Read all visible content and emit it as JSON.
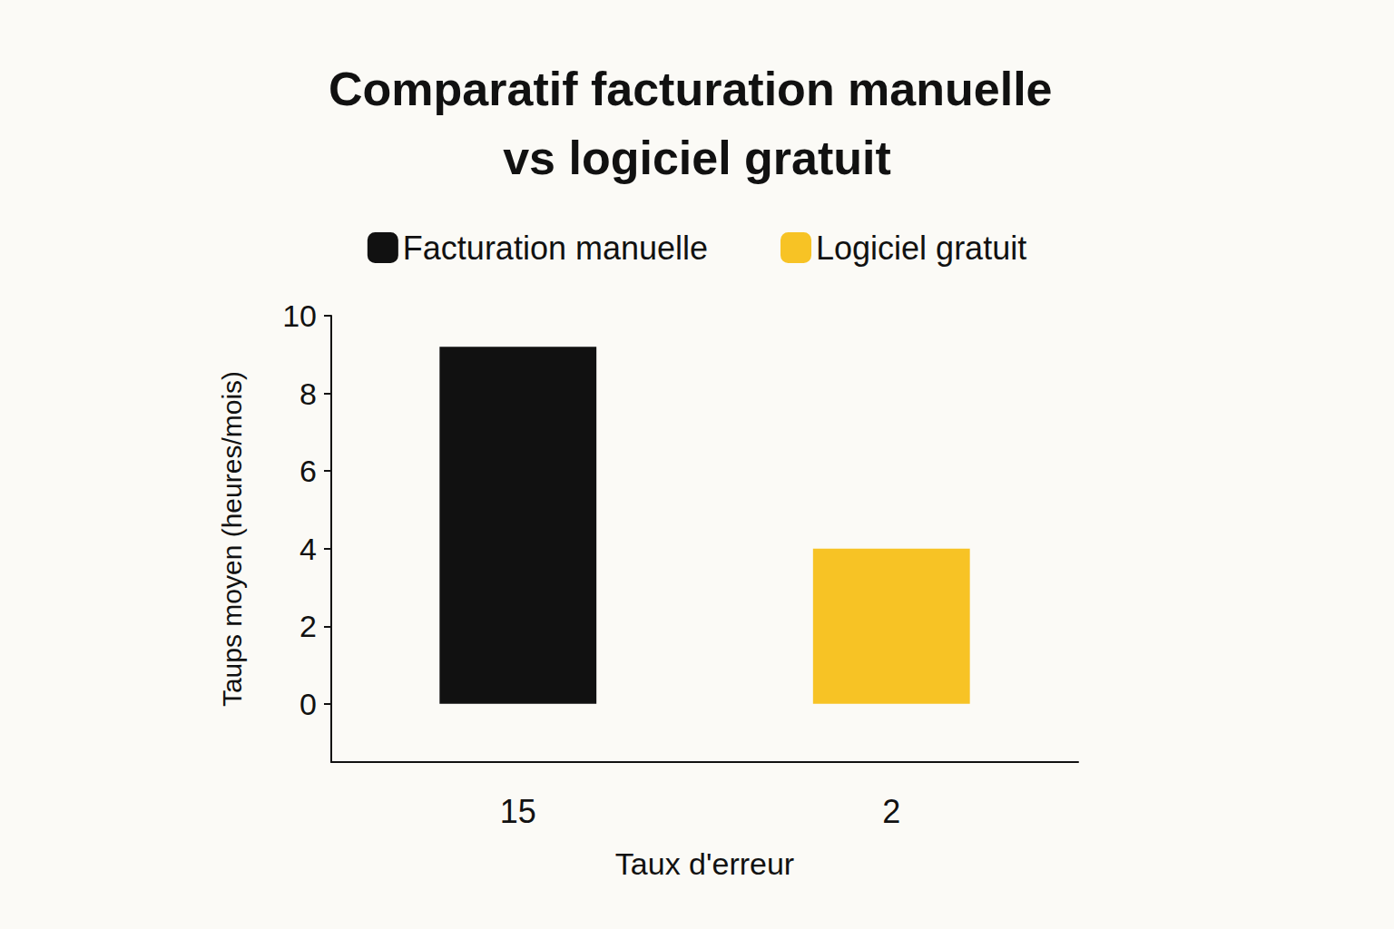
{
  "chart_data": {
    "type": "bar",
    "title": "Comparatif facturation manuelle vs logiciel gratuit",
    "x_label": "Taux d'erreur",
    "y_label": "Taups moyen (heures/mois)",
    "categories": [
      "15",
      "2"
    ],
    "series": [
      {
        "name": "Facturation manuelle",
        "color": "#111111",
        "values": [
          9.2,
          null
        ]
      },
      {
        "name": "Logiciel gratuit",
        "color": "#f7c325",
        "values": [
          null,
          4.0
        ]
      }
    ],
    "ylim": [
      -1.5,
      10
    ],
    "yticks": [
      0,
      2,
      4,
      6,
      8,
      10
    ],
    "grid": false,
    "legend": "top"
  }
}
